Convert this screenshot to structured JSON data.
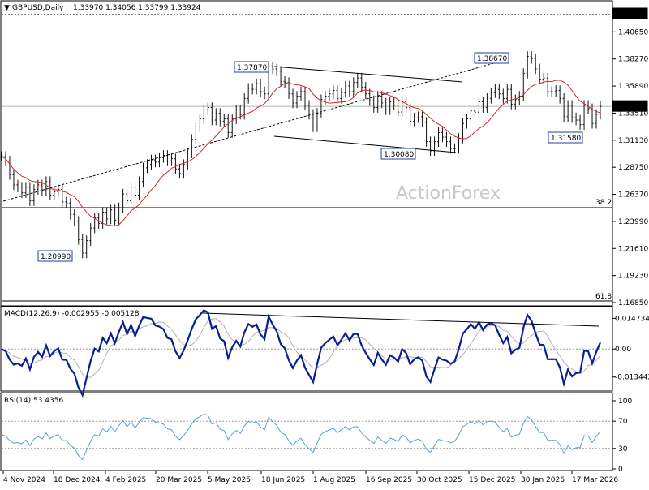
{
  "header": {
    "symbol": "GBPUSD,Daily",
    "ohlc": "1.33970 1.34056 1.33799 1.33924",
    "watermark": "ActionForex"
  },
  "colors": {
    "price": "#111111",
    "ma": "#d12a2a",
    "macd": "#0b1f8f",
    "signal": "#b0b0b0",
    "rsi": "#56a0d8",
    "label_border": "#2a3aa8",
    "trend": "#000000"
  },
  "chart_data": [
    {
      "type": "line",
      "name": "price",
      "y_ticks": [
        "1.42030",
        "1.40650",
        "1.38270",
        "1.35890",
        "1.33510",
        "1.31130",
        "1.28750",
        "1.26370",
        "1.23990",
        "1.21610",
        "1.19230",
        "1.16850"
      ],
      "ylim": [
        1.1685,
        1.4203
      ],
      "x_labels": [
        "4 Nov 2024",
        "18 Dec 2024",
        "4 Feb 2025",
        "20 Mar 2025",
        "5 May 2025",
        "18 Jun 2025",
        "1 Aug 2025",
        "16 Sep 2025",
        "30 Oct 2025",
        "15 Dec 2025",
        "30 Jan 2026",
        "17 Mar 2026"
      ],
      "x": [
        0,
        5,
        10,
        15,
        20,
        25,
        30,
        35,
        40,
        45,
        50,
        55,
        60,
        65,
        70,
        75,
        80,
        85,
        90,
        95,
        100,
        105,
        110,
        115,
        120,
        125,
        130,
        135,
        140,
        145,
        150,
        155,
        160,
        165,
        170,
        175,
        180,
        185,
        190,
        195,
        200,
        205,
        210,
        215,
        220,
        225,
        230,
        235,
        240,
        245,
        250,
        255,
        260,
        265,
        270,
        275,
        280,
        285,
        290,
        295,
        300,
        305,
        310,
        315,
        320,
        325,
        330,
        335,
        340,
        345,
        350,
        355,
        360,
        365,
        370,
        375,
        380,
        385,
        390,
        395,
        400,
        405,
        410,
        415,
        420,
        425,
        430,
        435,
        440,
        445,
        450,
        455,
        460,
        465,
        470,
        475,
        480,
        485,
        490,
        495,
        500,
        505,
        510,
        515,
        520,
        525,
        530,
        535,
        540,
        545,
        550,
        555,
        560,
        565,
        570,
        575,
        580,
        585,
        590,
        595,
        600,
        605,
        610,
        615,
        620,
        625,
        630,
        635,
        640,
        645,
        650,
        655,
        660,
        665,
        670,
        675,
        680,
        685,
        690,
        695,
        700,
        705,
        710,
        715,
        720,
        725,
        730,
        735,
        740
      ],
      "values": [
        1.297,
        1.293,
        1.281,
        1.272,
        1.27,
        1.265,
        1.27,
        1.258,
        1.268,
        1.272,
        1.267,
        1.275,
        1.263,
        1.266,
        1.268,
        1.257,
        1.256,
        1.246,
        1.24,
        1.224,
        1.212,
        1.223,
        1.234,
        1.243,
        1.238,
        1.248,
        1.242,
        1.25,
        1.241,
        1.252,
        1.264,
        1.258,
        1.27,
        1.263,
        1.275,
        1.287,
        1.29,
        1.294,
        1.292,
        1.296,
        1.298,
        1.293,
        1.295,
        1.286,
        1.282,
        1.29,
        1.3,
        1.312,
        1.323,
        1.33,
        1.338,
        1.34,
        1.329,
        1.335,
        1.328,
        1.33,
        1.318,
        1.33,
        1.338,
        1.334,
        1.348,
        1.357,
        1.356,
        1.361,
        1.354,
        1.352,
        1.376,
        1.374,
        1.372,
        1.363,
        1.362,
        1.352,
        1.344,
        1.35,
        1.354,
        1.342,
        1.334,
        1.323,
        1.335,
        1.347,
        1.35,
        1.352,
        1.355,
        1.348,
        1.353,
        1.359,
        1.354,
        1.362,
        1.366,
        1.358,
        1.352,
        1.346,
        1.34,
        1.35,
        1.344,
        1.338,
        1.345,
        1.342,
        1.336,
        1.345,
        1.34,
        1.328,
        1.331,
        1.332,
        1.327,
        1.31,
        1.302,
        1.31,
        1.318,
        1.314,
        1.31,
        1.304,
        1.304,
        1.313,
        1.326,
        1.33,
        1.337,
        1.336,
        1.345,
        1.34,
        1.348,
        1.353,
        1.356,
        1.352,
        1.348,
        1.356,
        1.343,
        1.347,
        1.35,
        1.37,
        1.385,
        1.383,
        1.374,
        1.365,
        1.366,
        1.354,
        1.354,
        1.355,
        1.348,
        1.332,
        1.342,
        1.331,
        1.329,
        1.325,
        1.342,
        1.339,
        1.326,
        1.334,
        1.341
      ]
    },
    {
      "type": "line",
      "name": "MACD(12,26,9) -0.002955 -0.005128",
      "y_ticks": [
        "0.014734",
        "0.00",
        "-0.013442"
      ],
      "ylim": [
        -0.0186,
        0.0172
      ]
    },
    {
      "type": "line",
      "name": "RSI(14) 53.4356",
      "y_ticks": [
        "100",
        "70",
        "30",
        "0"
      ],
      "ylim": [
        0,
        100
      ]
    }
  ],
  "price_box": "1.33924",
  "top_level_box": "1.42480",
  "fib_382": "38.2",
  "fib_618": "61.8",
  "callouts": [
    "1.37870",
    "1.38670",
    "1.30080",
    "1.31580",
    "1.20990"
  ]
}
